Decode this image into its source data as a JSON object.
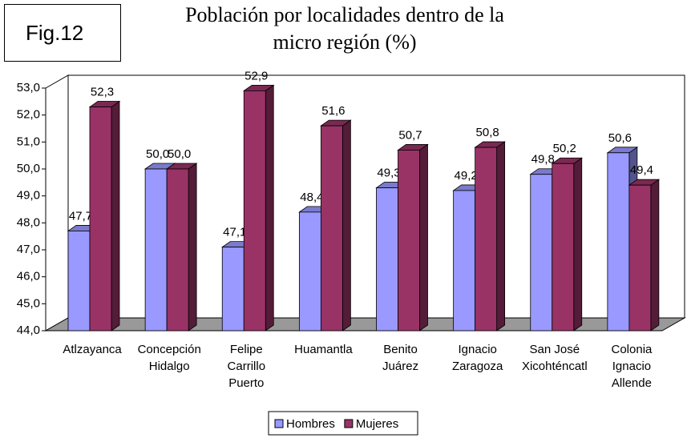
{
  "chart_data": {
    "type": "bar3d",
    "figure_label": "Fig.12",
    "title": "Población por localidades dentro de la\nmicro región (%)",
    "categories": [
      "Atlzayanca",
      "Concepción\nHidalgo",
      "Felipe\nCarrillo\nPuerto",
      "Huamantla",
      "Benito\nJuárez",
      "Ignacio\nZaragoza",
      "San José\nXicohténcatl",
      "Colonia\nIgnacio\nAllende"
    ],
    "series": [
      {
        "name": "Hombres",
        "color": "#9999ff",
        "values": [
          47.7,
          50.0,
          47.1,
          48.4,
          49.3,
          49.2,
          49.8,
          50.6
        ],
        "value_labels": [
          "47,7",
          "50,0",
          "47,1",
          "48,4",
          "49,3",
          "49,2",
          "49,8",
          "50,6"
        ]
      },
      {
        "name": "Mujeres",
        "color": "#993366",
        "values": [
          52.3,
          50.0,
          52.9,
          51.6,
          50.7,
          50.8,
          50.2,
          49.4
        ],
        "value_labels": [
          "52,3",
          "50,0",
          "52,9",
          "51,6",
          "50,7",
          "50,8",
          "50,2",
          "49,4"
        ]
      }
    ],
    "ylim": [
      44,
      53
    ],
    "yticks": [
      {
        "value": 44,
        "label": "44,0"
      },
      {
        "value": 45,
        "label": "45,0"
      },
      {
        "value": 46,
        "label": "46,0"
      },
      {
        "value": 47,
        "label": "47,0"
      },
      {
        "value": 48,
        "label": "48,0"
      },
      {
        "value": 49,
        "label": "49,0"
      },
      {
        "value": 50,
        "label": "50,0"
      },
      {
        "value": 51,
        "label": "51,0"
      },
      {
        "value": 52,
        "label": "52,0"
      },
      {
        "value": 53,
        "label": "53,0"
      }
    ],
    "legend": "bottom"
  }
}
